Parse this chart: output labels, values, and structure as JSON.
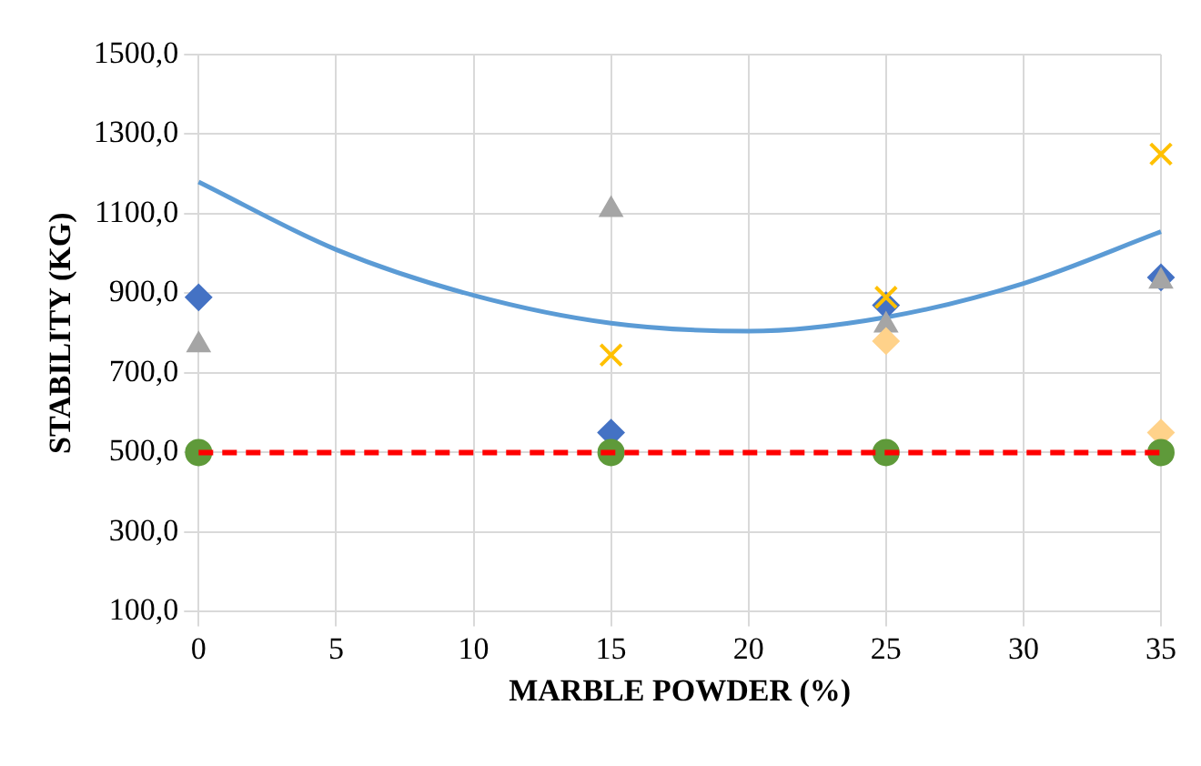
{
  "chart_data": {
    "type": "scatter",
    "xlabel": "MARBLE POWDER (%)",
    "ylabel": "STABILITY (KG)",
    "xlim": [
      0,
      35
    ],
    "xticks": [
      0,
      5,
      10,
      15,
      20,
      25,
      30,
      35
    ],
    "ylim": [
      100,
      1500
    ],
    "yticks": [
      {
        "value": 100,
        "label": "100,0"
      },
      {
        "value": 300,
        "label": "300,0"
      },
      {
        "value": 500,
        "label": "500,0"
      },
      {
        "value": 700,
        "label": "700,0"
      },
      {
        "value": 900,
        "label": "900,0"
      },
      {
        "value": 1100,
        "label": "1100,0"
      },
      {
        "value": 1300,
        "label": "1300,0"
      },
      {
        "value": 1500,
        "label": "1500,0"
      }
    ],
    "grid": true,
    "legend": false,
    "series": [
      {
        "type": "line",
        "color": "#5b9bd5",
        "marker": "none",
        "line_style": "solid",
        "x": [
          0,
          5,
          10,
          15,
          20,
          25,
          30,
          35
        ],
        "values": [
          1180,
          1010,
          895,
          825,
          805,
          840,
          925,
          1055
        ]
      },
      {
        "color": "#4472c4",
        "marker": "diamond",
        "x": [
          0,
          15,
          25,
          35
        ],
        "values": [
          890,
          550,
          870,
          940
        ]
      },
      {
        "color": "#a5a5a5",
        "marker": "triangle",
        "x": [
          0,
          15,
          25,
          35
        ],
        "values": [
          770,
          1110,
          820,
          930
        ]
      },
      {
        "color": "#ffc000",
        "marker": "cross",
        "x": [
          15,
          25,
          35
        ],
        "values": [
          745,
          890,
          1250
        ]
      },
      {
        "color": "#ffd28a",
        "marker": "diamond",
        "x": [
          25,
          35
        ],
        "values": [
          780,
          550
        ]
      },
      {
        "color": "#5f9a3a",
        "marker": "circle",
        "x": [
          0,
          15,
          25,
          35
        ],
        "values": [
          500,
          500,
          500,
          500
        ]
      }
    ],
    "ref_lines": [
      {
        "axis": "y",
        "value": 500,
        "color": "#ff0000",
        "line_style": "dashed"
      }
    ]
  }
}
